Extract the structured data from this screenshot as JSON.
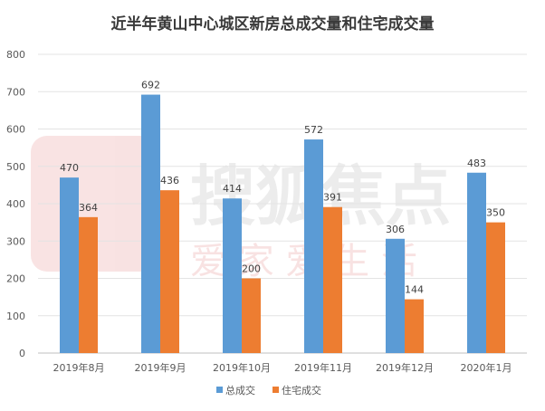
{
  "chart_data": {
    "type": "bar",
    "title": "近半年黄山中心城区新房总成交量和住宅成交量",
    "categories": [
      "2019年8月",
      "2019年9月",
      "2019年10月",
      "2019年11月",
      "2019年12月",
      "2020年1月"
    ],
    "series": [
      {
        "name": "总成交",
        "color": "#5b9bd5",
        "values": [
          470,
          692,
          414,
          572,
          306,
          483
        ]
      },
      {
        "name": "住宅成交",
        "color": "#ed7d31",
        "values": [
          364,
          436,
          200,
          391,
          144,
          350
        ]
      }
    ],
    "ylim": [
      0,
      800
    ],
    "yticks": [
      0,
      100,
      200,
      300,
      400,
      500,
      600,
      700,
      800
    ],
    "grid": true,
    "legend_position": "bottom"
  },
  "watermark": {
    "brand": "搜狐焦点",
    "slogan": "爱 家   爱 生 活"
  }
}
